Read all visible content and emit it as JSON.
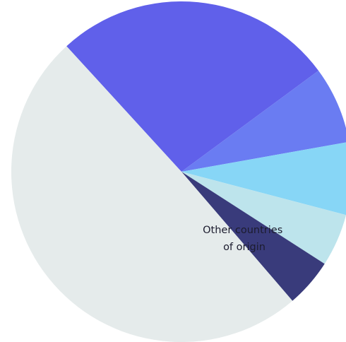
{
  "chart_data": {
    "type": "pie",
    "title": "",
    "slices": [
      {
        "label": "",
        "value": 26.7,
        "color": "#6060ea"
      },
      {
        "label": "",
        "value": 7.3,
        "color": "#6a7cf2"
      },
      {
        "label": "",
        "value": 6.9,
        "color": "#87d6f6"
      },
      {
        "label": "",
        "value": 5.0,
        "color": "#bde4ec"
      },
      {
        "label": "",
        "value": 4.6,
        "color": "#393b7b"
      },
      {
        "label": "Other countries of origin",
        "value": 49.5,
        "color": "#e5ebeb"
      }
    ]
  },
  "labels": {
    "other_line1": "Other countries",
    "other_line2": "of origin"
  }
}
